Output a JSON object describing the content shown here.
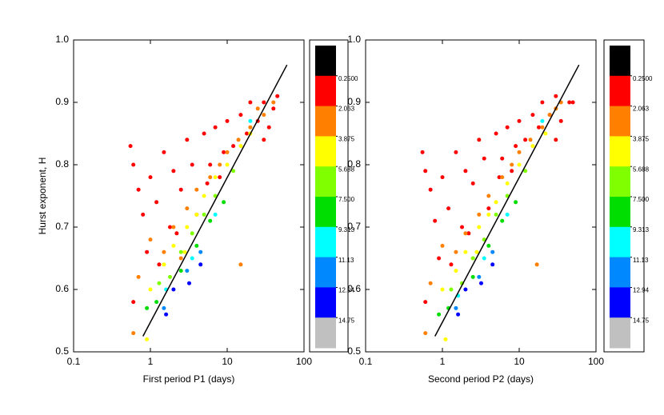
{
  "chart_data": [
    {
      "type": "scatter",
      "xlabel": "First period P1 (days)",
      "ylabel": "Hurst exponent, H",
      "xscale": "log",
      "xlim": [
        0.1,
        100
      ],
      "xticks": [
        0.1,
        1,
        10,
        100
      ],
      "ylim": [
        0.5,
        1.0
      ],
      "yticks": [
        0.5,
        0.6,
        0.7,
        0.8,
        0.9,
        {
          "value": 1.0,
          "label": "1.0"
        }
      ],
      "colorbar": {
        "zlim": [
          -1.5625,
          16.5625
        ],
        "colors": [
          "#000000",
          "#ff0000",
          "#ff8000",
          "#ffff00",
          "#80ff00",
          "#00dd00",
          "#00ffff",
          "#0088ff",
          "#0000ff",
          "#c0c0c0"
        ],
        "ticks": [
          {
            "value": 0.25,
            "label": "0.2500"
          },
          2.063,
          3.875,
          5.688,
          {
            "value": 7.5,
            "label": "7.500"
          },
          9.313,
          11.13,
          12.94,
          14.75
        ]
      },
      "fit": {
        "color": "#000000",
        "x": [
          0.8,
          60
        ],
        "values": [
          0.525,
          0.96
        ]
      },
      "series": [
        {
          "color": "#ff0000",
          "x": [
            0.55,
            0.6,
            0.7,
            0.8,
            1.0,
            1.2,
            1.5,
            1.8,
            2,
            2.5,
            3,
            3.5,
            4,
            5,
            6,
            7,
            8,
            10,
            12,
            15,
            18,
            20,
            25,
            30,
            35,
            40,
            0.6,
            0.9,
            1.3,
            2.2,
            45,
            30,
            9,
            5.5
          ],
          "values": [
            0.83,
            0.8,
            0.76,
            0.72,
            0.78,
            0.74,
            0.82,
            0.7,
            0.79,
            0.76,
            0.84,
            0.8,
            0.72,
            0.85,
            0.8,
            0.86,
            0.78,
            0.87,
            0.83,
            0.88,
            0.85,
            0.9,
            0.87,
            0.9,
            0.86,
            0.89,
            0.58,
            0.66,
            0.64,
            0.69,
            0.91,
            0.84,
            0.82,
            0.77
          ]
        },
        {
          "color": "#ff8000",
          "x": [
            0.7,
            1,
            1.5,
            2,
            3,
            4,
            6,
            8,
            10,
            14,
            15,
            20,
            25,
            30,
            0.6,
            2.5,
            40
          ],
          "values": [
            0.62,
            0.68,
            0.66,
            0.7,
            0.73,
            0.76,
            0.78,
            0.8,
            0.82,
            0.84,
            0.64,
            0.86,
            0.89,
            0.88,
            0.53,
            0.65,
            0.9
          ]
        },
        {
          "color": "#ffff00",
          "x": [
            1,
            1.5,
            2,
            3,
            4,
            5,
            7,
            10,
            15,
            20,
            0.9,
            2.8
          ],
          "values": [
            0.6,
            0.64,
            0.67,
            0.7,
            0.72,
            0.75,
            0.78,
            0.8,
            0.83,
            0.85,
            0.52,
            0.66
          ]
        },
        {
          "color": "#80ff00",
          "x": [
            1.8,
            2.5,
            3.5,
            5,
            7,
            12,
            1.3
          ],
          "values": [
            0.62,
            0.66,
            0.69,
            0.72,
            0.75,
            0.79,
            0.61
          ]
        },
        {
          "color": "#00dd00",
          "x": [
            1.2,
            2.5,
            4,
            6,
            9,
            0.9
          ],
          "values": [
            0.58,
            0.63,
            0.67,
            0.71,
            0.74,
            0.57
          ]
        },
        {
          "color": "#00ffff",
          "x": [
            1.6,
            3.5,
            7,
            20
          ],
          "values": [
            0.6,
            0.65,
            0.72,
            0.87
          ]
        },
        {
          "color": "#0088ff",
          "x": [
            1.5,
            3,
            4.5
          ],
          "values": [
            0.57,
            0.63,
            0.66
          ]
        },
        {
          "color": "#0000ff",
          "x": [
            1.6,
            3.2,
            4.5,
            2
          ],
          "values": [
            0.56,
            0.61,
            0.64,
            0.6
          ]
        }
      ]
    },
    {
      "type": "scatter",
      "xlabel": "Second period P2 (days)",
      "xscale": "log",
      "xlim": [
        0.1,
        100
      ],
      "xticks": [
        0.1,
        1,
        10,
        100
      ],
      "ylim": [
        0.5,
        1.0
      ],
      "yticks": [
        0.5,
        0.6,
        0.7,
        0.8,
        0.9,
        {
          "value": 1.0,
          "label": "1.0"
        }
      ],
      "colorbar": {
        "zlim": [
          -1.5625,
          16.5625
        ],
        "colors": [
          "#000000",
          "#ff0000",
          "#ff8000",
          "#ffff00",
          "#80ff00",
          "#00dd00",
          "#00ffff",
          "#0088ff",
          "#0000ff",
          "#c0c0c0"
        ],
        "ticks": [
          {
            "value": 0.25,
            "label": "0.2500"
          },
          2.063,
          3.875,
          5.688,
          {
            "value": 7.5,
            "label": "7.500"
          },
          9.313,
          11.13,
          12.94,
          14.75
        ]
      },
      "fit": {
        "color": "#000000",
        "x": [
          0.8,
          60
        ],
        "values": [
          0.525,
          0.96
        ]
      },
      "series": [
        {
          "color": "#ff0000",
          "x": [
            0.55,
            0.6,
            0.7,
            0.8,
            1.0,
            1.2,
            1.5,
            1.8,
            2,
            2.5,
            3,
            3.5,
            4,
            5,
            6,
            7,
            8,
            10,
            12,
            15,
            18,
            20,
            25,
            30,
            35,
            45,
            0.6,
            0.9,
            1.3,
            2.2,
            50,
            30,
            9,
            5.5
          ],
          "values": [
            0.82,
            0.79,
            0.76,
            0.71,
            0.78,
            0.73,
            0.82,
            0.7,
            0.79,
            0.77,
            0.84,
            0.81,
            0.73,
            0.85,
            0.81,
            0.86,
            0.79,
            0.87,
            0.84,
            0.88,
            0.86,
            0.9,
            0.88,
            0.91,
            0.87,
            0.9,
            0.58,
            0.65,
            0.64,
            0.69,
            0.9,
            0.84,
            0.83,
            0.78
          ]
        },
        {
          "color": "#ff8000",
          "x": [
            0.7,
            1,
            1.5,
            2,
            3,
            4,
            6,
            8,
            10,
            14,
            17,
            20,
            25,
            30,
            0.6,
            2.5,
            35
          ],
          "values": [
            0.61,
            0.67,
            0.66,
            0.69,
            0.72,
            0.75,
            0.78,
            0.8,
            0.82,
            0.84,
            0.64,
            0.86,
            0.88,
            0.89,
            0.53,
            0.65,
            0.9
          ]
        },
        {
          "color": "#ffff00",
          "x": [
            1,
            1.5,
            2,
            3,
            4,
            5,
            7,
            10,
            15,
            22,
            1.1,
            2.8
          ],
          "values": [
            0.6,
            0.63,
            0.66,
            0.7,
            0.72,
            0.74,
            0.77,
            0.8,
            0.83,
            0.85,
            0.52,
            0.66
          ]
        },
        {
          "color": "#80ff00",
          "x": [
            1.8,
            2.5,
            3.5,
            5,
            7,
            12,
            1.3
          ],
          "values": [
            0.61,
            0.65,
            0.68,
            0.72,
            0.75,
            0.79,
            0.6
          ]
        },
        {
          "color": "#00dd00",
          "x": [
            1.2,
            2.5,
            4,
            6,
            9,
            0.9
          ],
          "values": [
            0.57,
            0.62,
            0.67,
            0.71,
            0.74,
            0.56
          ]
        },
        {
          "color": "#00ffff",
          "x": [
            1.6,
            3.5,
            7,
            20
          ],
          "values": [
            0.59,
            0.65,
            0.72,
            0.87
          ]
        },
        {
          "color": "#0088ff",
          "x": [
            1.5,
            3,
            4.5
          ],
          "values": [
            0.57,
            0.62,
            0.66
          ]
        },
        {
          "color": "#0000ff",
          "x": [
            1.6,
            3.2,
            4.5,
            2
          ],
          "values": [
            0.56,
            0.61,
            0.64,
            0.6
          ]
        }
      ]
    }
  ]
}
